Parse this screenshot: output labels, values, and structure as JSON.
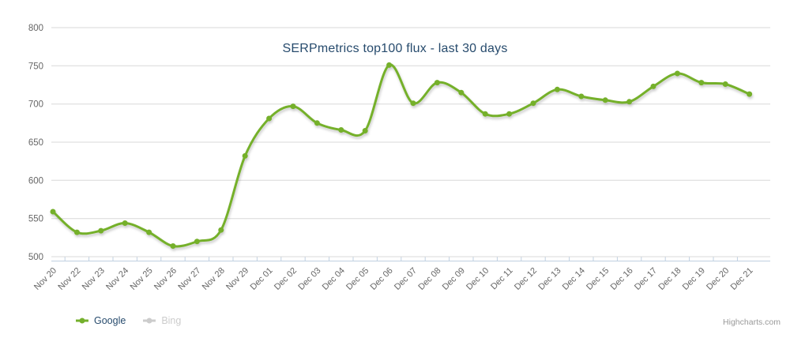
{
  "chart_data": {
    "type": "line",
    "title": "SERPmetrics top100 flux - last 30 days",
    "xlabel": "",
    "ylabel": "",
    "ylim": [
      500,
      800
    ],
    "yticks": [
      500,
      550,
      600,
      650,
      700,
      750,
      800
    ],
    "grid": "horizontal",
    "legend_position": "bottom-left",
    "categories": [
      "Nov 20",
      "Nov 22",
      "Nov 23",
      "Nov 24",
      "Nov 25",
      "Nov 26",
      "Nov 27",
      "Nov 28",
      "Nov 29",
      "Dec 01",
      "Dec 02",
      "Dec 03",
      "Dec 04",
      "Dec 05",
      "Dec 06",
      "Dec 07",
      "Dec 08",
      "Dec 09",
      "Dec 10",
      "Dec 11",
      "Dec 12",
      "Dec 13",
      "Dec 14",
      "Dec 15",
      "Dec 16",
      "Dec 17",
      "Dec 18",
      "Dec 19",
      "Dec 20",
      "Dec 21"
    ],
    "series": [
      {
        "name": "Google",
        "color": "#74b02c",
        "visible": true,
        "values": [
          559,
          532,
          534,
          544,
          532,
          514,
          520,
          535,
          632,
          681,
          697,
          675,
          666,
          665,
          751,
          701,
          728,
          715,
          687,
          687,
          701,
          719,
          710,
          705,
          703,
          723,
          740,
          728,
          726,
          713
        ]
      },
      {
        "name": "Bing",
        "color": "#cccccc",
        "visible": false,
        "values": []
      }
    ]
  },
  "credits": {
    "label": "Highcharts.com"
  },
  "colors": {
    "title": "#274b6d",
    "axis_label": "#666666",
    "grid": "#d8d8d8",
    "axis_line": "#c0d0e0",
    "legend_enabled": "#274b6d",
    "legend_disabled": "#cccccc",
    "credits": "#999999",
    "background": "#ffffff"
  }
}
